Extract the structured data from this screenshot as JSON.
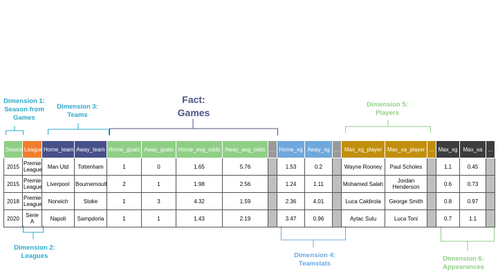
{
  "labels": {
    "dim1": "Dimension 1:\nSeason from\nGames",
    "dim2": "Dimension 2:\nLeagues",
    "dim3": "Dimension 3:\nTeams",
    "fact": "Fact:\nGames",
    "dim4": "Dimension 4:\nTeamstats",
    "dim5": "Dimension 5:\nPlayers",
    "dim6": "Dimension 6:\nAppearances"
  },
  "colors": {
    "teal_label": "#2aa9c9",
    "green_label": "#8fcf85",
    "blue_label": "#6fa8dc",
    "navy_label": "#4a5486"
  },
  "table": {
    "headers": [
      "Season",
      "League",
      "Home_team",
      "Away_team",
      "Home_goals",
      "Away_goals",
      "Home_avg_odds",
      "Away_avg_odds",
      "...",
      "Home_xg",
      "Away_xg",
      "...",
      "Max_xg_player",
      "Max_xa_player",
      "...",
      "Max_xg",
      "Max_xa",
      "..."
    ],
    "rows": [
      [
        "2015",
        "Premier League",
        "Man Utd",
        "Tottenham",
        "1",
        "0",
        "1.65",
        "5.76",
        "",
        "1.53",
        "0.2",
        "",
        "Wayne Rooney",
        "Paul Scholes",
        "",
        "1.1",
        "0.45",
        ""
      ],
      [
        "2015",
        "Premier League",
        "Liverpool",
        "Bournemouth",
        "2",
        "1",
        "1.98",
        "2.56",
        "",
        "1.24",
        "1.11",
        "",
        "Mohamed Salah",
        "Jordan Henderson",
        "",
        "0.6",
        "0.73",
        ""
      ],
      [
        "2018",
        "Premier League",
        "Norwich",
        "Stoke",
        "1",
        "3",
        "4.32",
        "1.59",
        "",
        "2.36",
        "4.01",
        "",
        "Luca Caldirola",
        "George Smith",
        "",
        "0.8",
        "0.97",
        ""
      ],
      [
        "2020",
        "Serie A",
        "Napoli",
        "Sampdoria",
        "1",
        "1",
        "1.43",
        "2.19",
        "",
        "3.47",
        "0.96",
        "",
        "Aytac Sulu",
        "Luca Toni",
        "",
        "0.7",
        "1.1",
        ""
      ]
    ]
  }
}
